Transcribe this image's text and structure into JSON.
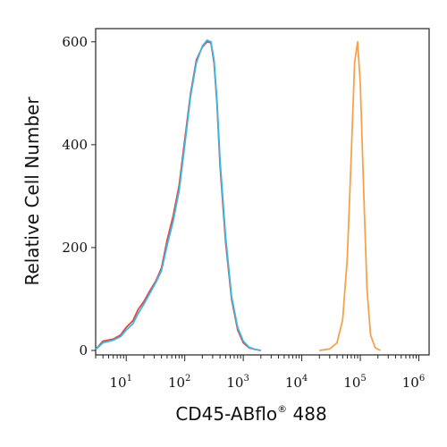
{
  "chart_data": {
    "type": "line",
    "title": "",
    "xlabel": "CD45-ABflo",
    "xlabel_suffix": "®",
    "xlabel_tail": " 488",
    "ylabel": "Relative Cell Number",
    "x_scale": "log",
    "xlim": [
      3,
      1500000
    ],
    "ylim": [
      0,
      650
    ],
    "grid": false,
    "legend": "none",
    "y_ticks": [
      0,
      200,
      400,
      600
    ],
    "x_ticks": [
      {
        "value": 10,
        "base": "10",
        "exp": "1"
      },
      {
        "value": 100,
        "base": "10",
        "exp": "2"
      },
      {
        "value": 1000,
        "base": "10",
        "exp": "3"
      },
      {
        "value": 10000,
        "base": "10",
        "exp": "4"
      },
      {
        "value": 100000,
        "base": "10",
        "exp": "5"
      },
      {
        "value": 1000000,
        "base": "10",
        "exp": "6"
      }
    ],
    "series": [
      {
        "color": "#e8453c",
        "x": [
          3,
          4,
          6,
          8,
          10,
          13,
          16,
          20,
          25,
          32,
          40,
          50,
          63,
          80,
          100,
          126,
          158,
          200,
          240,
          280,
          316,
          355,
          400,
          500,
          630,
          800,
          1000,
          1260,
          1580,
          2000
        ],
        "y": [
          2,
          18,
          22,
          30,
          45,
          58,
          80,
          95,
          115,
          135,
          160,
          215,
          260,
          320,
          410,
          500,
          565,
          590,
          600,
          598,
          560,
          480,
          360,
          210,
          100,
          40,
          15,
          5,
          2,
          0
        ]
      },
      {
        "color": "#3ab7e2",
        "x": [
          3,
          4,
          6,
          8,
          10,
          13,
          16,
          20,
          25,
          32,
          40,
          50,
          63,
          80,
          100,
          126,
          158,
          200,
          240,
          280,
          316,
          355,
          400,
          500,
          630,
          800,
          1000,
          1260,
          1580,
          2000
        ],
        "y": [
          2,
          15,
          20,
          27,
          40,
          52,
          72,
          90,
          110,
          132,
          155,
          205,
          250,
          310,
          400,
          495,
          560,
          592,
          603,
          600,
          565,
          485,
          370,
          220,
          105,
          45,
          18,
          6,
          2,
          0
        ]
      },
      {
        "color": "#f4a34c",
        "x": [
          20000,
          30000,
          40000,
          50000,
          60000,
          70000,
          80000,
          90000,
          100000,
          115000,
          130000,
          150000,
          180000,
          220000
        ],
        "y": [
          0,
          3,
          15,
          60,
          180,
          380,
          560,
          600,
          520,
          300,
          120,
          30,
          5,
          0
        ]
      }
    ]
  }
}
